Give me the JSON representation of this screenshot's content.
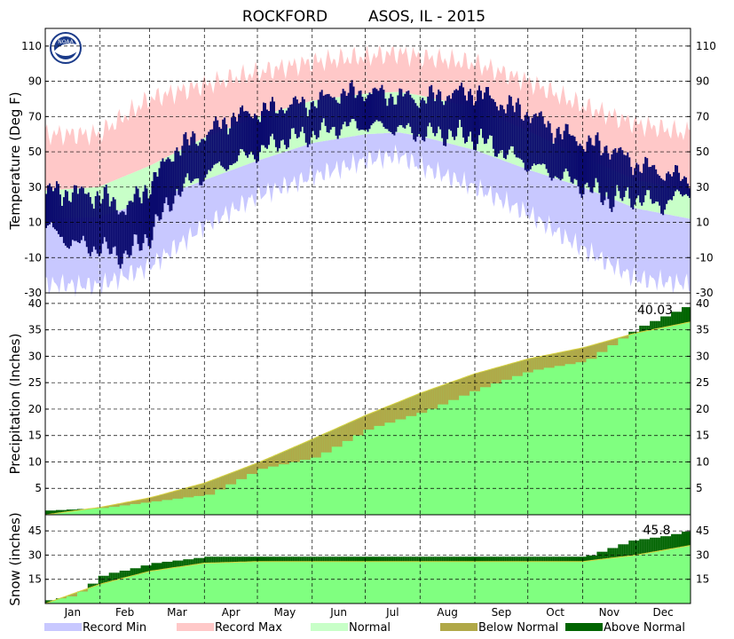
{
  "title": {
    "station": "ROCKFORD",
    "suffix": "ASOS, IL - 2015"
  },
  "logo_text": "NOAA",
  "colors": {
    "record_min": "#c8c8ff",
    "record_max": "#ffc8c8",
    "normal": "#c8ffc8",
    "observed": "#0a0a6e",
    "precip_normal": "#80ff80",
    "below_normal": "#b0a848",
    "above_normal": "#006400"
  },
  "chart_data": [
    {
      "type": "area",
      "panel": "temperature",
      "ylabel": "Temperature (Deg F)",
      "ylim": [
        -30,
        120
      ],
      "yticks": [
        -30,
        -10,
        10,
        30,
        50,
        70,
        90,
        110
      ],
      "grid": true,
      "months": [
        "Jan",
        "Feb",
        "Mar",
        "Apr",
        "May",
        "Jun",
        "Jul",
        "Aug",
        "Sep",
        "Oct",
        "Nov",
        "Dec"
      ],
      "month_start_day": [
        0,
        31,
        59,
        90,
        120,
        151,
        181,
        212,
        243,
        273,
        304,
        334
      ],
      "normal_band_keypoints": {
        "day": [
          0,
          30,
          59,
          90,
          120,
          151,
          181,
          200,
          212,
          243,
          273,
          304,
          334,
          365
        ],
        "high": [
          28,
          30,
          42,
          58,
          70,
          79,
          83,
          84,
          82,
          75,
          62,
          47,
          34,
          28
        ],
        "low": [
          12,
          13,
          22,
          34,
          45,
          55,
          60,
          61,
          59,
          51,
          40,
          30,
          18,
          12
        ]
      },
      "record_envelope_keypoints": {
        "day": [
          0,
          30,
          59,
          90,
          120,
          151,
          181,
          200,
          212,
          243,
          273,
          304,
          334,
          365
        ],
        "record_high": [
          60,
          60,
          80,
          88,
          95,
          101,
          104,
          106,
          104,
          100,
          90,
          76,
          66,
          60
        ],
        "record_low": [
          -25,
          -26,
          -15,
          8,
          25,
          36,
          45,
          48,
          42,
          30,
          15,
          -5,
          -22,
          -25
        ]
      },
      "observed_range_keypoints": {
        "day": [
          0,
          15,
          31,
          45,
          59,
          74,
          90,
          105,
          120,
          135,
          151,
          166,
          181,
          196,
          212,
          227,
          243,
          258,
          273,
          288,
          304,
          319,
          334,
          349,
          365
        ],
        "high": [
          30,
          30,
          28,
          20,
          35,
          55,
          62,
          72,
          75,
          78,
          80,
          85,
          86,
          84,
          82,
          85,
          87,
          80,
          75,
          65,
          58,
          55,
          45,
          40,
          35
        ],
        "low": [
          5,
          -5,
          -8,
          -12,
          0,
          25,
          35,
          42,
          48,
          55,
          58,
          62,
          63,
          62,
          58,
          58,
          55,
          48,
          40,
          35,
          28,
          20,
          22,
          18,
          28
        ]
      }
    },
    {
      "type": "area",
      "panel": "precipitation",
      "ylabel": "Precipitation (Inches)",
      "ylim": [
        0,
        42
      ],
      "yticks": [
        5,
        10,
        15,
        20,
        25,
        30,
        35,
        40
      ],
      "grid": true,
      "annotation": "40.03",
      "normal_keypoints": {
        "day": [
          0,
          31,
          59,
          90,
          120,
          151,
          181,
          212,
          243,
          273,
          304,
          334,
          365
        ],
        "value": [
          0,
          1.4,
          3.2,
          6.0,
          9.8,
          14.3,
          18.8,
          23.0,
          26.7,
          29.5,
          31.6,
          34.4,
          36.5
        ]
      },
      "observed_keypoints": {
        "day": [
          0,
          31,
          59,
          90,
          120,
          151,
          181,
          212,
          243,
          273,
          304,
          334,
          365
        ],
        "value": [
          0.8,
          1.3,
          2.5,
          3.8,
          8.7,
          10.9,
          16.3,
          19.5,
          23.8,
          27.3,
          29.1,
          35.5,
          40.03
        ]
      }
    },
    {
      "type": "area",
      "panel": "snow",
      "ylabel": "Snow (inches)",
      "ylim": [
        0,
        55
      ],
      "yticks": [
        15,
        30,
        45
      ],
      "grid": true,
      "annotation": "45.8",
      "normal_keypoints": {
        "day": [
          0,
          31,
          59,
          90,
          120,
          151,
          304,
          334,
          365
        ],
        "value": [
          0,
          12,
          20,
          25,
          26,
          26,
          26,
          30,
          36
        ]
      },
      "observed_keypoints": {
        "day": [
          0,
          15,
          31,
          45,
          59,
          75,
          90,
          120,
          151,
          304,
          330,
          350,
          365
        ],
        "value": [
          2,
          5,
          18,
          21,
          25,
          27,
          29,
          29,
          29,
          29,
          39,
          42,
          45.8
        ]
      }
    }
  ],
  "legend": [
    {
      "label": "Record Min",
      "color": "#c8c8ff"
    },
    {
      "label": "Record Max",
      "color": "#ffc8c8"
    },
    {
      "label": "Normal",
      "color": "#c8ffc8"
    },
    {
      "label": "Below Normal",
      "color": "#b0a848"
    },
    {
      "label": "Above Normal",
      "color": "#006400"
    }
  ]
}
